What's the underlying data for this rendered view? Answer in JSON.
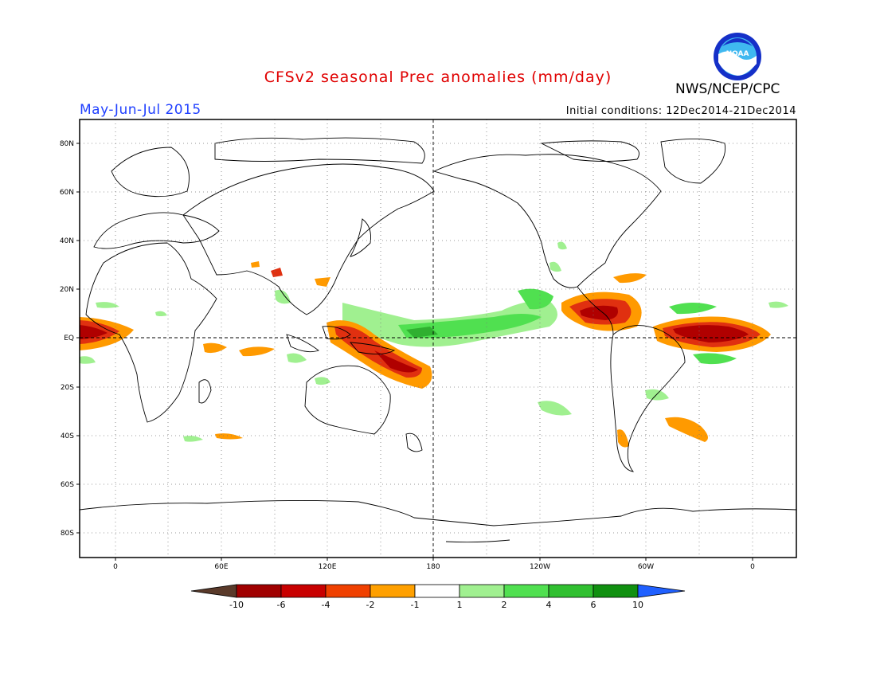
{
  "title": "CFSv2 seasonal Prec anomalies (mm/day)",
  "period": "May-Jun-Jul 2015",
  "initial_conditions": "Initial conditions: 12Dec2014-21Dec2014",
  "agency": "NWS/NCEP/CPC",
  "logo_text": "NOAA",
  "lat_labels": [
    "80N",
    "60N",
    "40N",
    "20N",
    "EQ",
    "20S",
    "40S",
    "60S",
    "80S"
  ],
  "lon_labels": [
    "0",
    "60E",
    "120E",
    "180",
    "120W",
    "60W",
    "0"
  ],
  "colorbar": {
    "labels": [
      "-10",
      "-6",
      "-4",
      "-2",
      "-1",
      "1",
      "2",
      "4",
      "6",
      "10"
    ],
    "colors": [
      "#5a3a2a",
      "#a00000",
      "#c80000",
      "#f04000",
      "#ffa000",
      "#ffffff",
      "#a0f090",
      "#50e050",
      "#30c030",
      "#109010",
      "#2060ff"
    ]
  },
  "colors": {
    "title": "#e00000",
    "period": "#2040ff",
    "dry_strong": "#b00000",
    "dry_med": "#e03010",
    "dry_light": "#ff9a00",
    "wet_light": "#a0f090",
    "wet_med": "#50e050",
    "wet_strong": "#30b030"
  }
}
